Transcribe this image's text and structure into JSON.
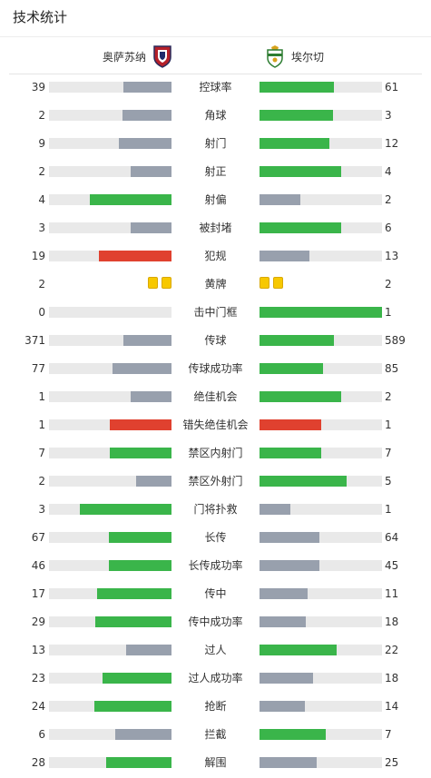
{
  "header": {
    "title": "技术统计"
  },
  "teams": {
    "home": "奥萨苏纳",
    "away": "埃尔切"
  },
  "colors": {
    "green": "#3ab54a",
    "grey": "#98a0ad",
    "red": "#e0412f",
    "track": "#e9e9e9",
    "yellow_card": "#f7c800"
  },
  "stats": [
    {
      "label": "控球率",
      "home": "39",
      "away": "61",
      "home_fill": 0.39,
      "away_fill": 0.61,
      "home_color": "grey",
      "away_color": "green"
    },
    {
      "label": "角球",
      "home": "2",
      "away": "3",
      "home_fill": 0.4,
      "away_fill": 0.6,
      "home_color": "grey",
      "away_color": "green"
    },
    {
      "label": "射门",
      "home": "9",
      "away": "12",
      "home_fill": 0.43,
      "away_fill": 0.57,
      "home_color": "grey",
      "away_color": "green"
    },
    {
      "label": "射正",
      "home": "2",
      "away": "4",
      "home_fill": 0.33,
      "away_fill": 0.67,
      "home_color": "grey",
      "away_color": "green"
    },
    {
      "label": "射偏",
      "home": "4",
      "away": "2",
      "home_fill": 0.67,
      "away_fill": 0.33,
      "home_color": "green",
      "away_color": "grey"
    },
    {
      "label": "被封堵",
      "home": "3",
      "away": "6",
      "home_fill": 0.33,
      "away_fill": 0.67,
      "home_color": "grey",
      "away_color": "green"
    },
    {
      "label": "犯规",
      "home": "19",
      "away": "13",
      "home_fill": 0.59,
      "away_fill": 0.41,
      "home_color": "red",
      "away_color": "grey"
    },
    {
      "label": "黄牌",
      "home": "2",
      "away": "2",
      "cards": true
    },
    {
      "label": "击中门框",
      "home": "0",
      "away": "1",
      "home_fill": 0,
      "away_fill": 1,
      "home_color": "grey",
      "away_color": "green"
    },
    {
      "label": "传球",
      "home": "371",
      "away": "589",
      "home_fill": 0.39,
      "away_fill": 0.61,
      "home_color": "grey",
      "away_color": "green"
    },
    {
      "label": "传球成功率",
      "home": "77",
      "away": "85",
      "home_fill": 0.48,
      "away_fill": 0.52,
      "home_color": "grey",
      "away_color": "green"
    },
    {
      "label": "绝佳机会",
      "home": "1",
      "away": "2",
      "home_fill": 0.33,
      "away_fill": 0.67,
      "home_color": "grey",
      "away_color": "green"
    },
    {
      "label": "错失绝佳机会",
      "home": "1",
      "away": "1",
      "home_fill": 0.5,
      "away_fill": 0.5,
      "home_color": "red",
      "away_color": "red"
    },
    {
      "label": "禁区内射门",
      "home": "7",
      "away": "7",
      "home_fill": 0.5,
      "away_fill": 0.5,
      "home_color": "green",
      "away_color": "green"
    },
    {
      "label": "禁区外射门",
      "home": "2",
      "away": "5",
      "home_fill": 0.29,
      "away_fill": 0.71,
      "home_color": "grey",
      "away_color": "green"
    },
    {
      "label": "门将扑救",
      "home": "3",
      "away": "1",
      "home_fill": 0.75,
      "away_fill": 0.25,
      "home_color": "green",
      "away_color": "grey"
    },
    {
      "label": "长传",
      "home": "67",
      "away": "64",
      "home_fill": 0.51,
      "away_fill": 0.49,
      "home_color": "green",
      "away_color": "grey"
    },
    {
      "label": "长传成功率",
      "home": "46",
      "away": "45",
      "home_fill": 0.51,
      "away_fill": 0.49,
      "home_color": "green",
      "away_color": "grey"
    },
    {
      "label": "传中",
      "home": "17",
      "away": "11",
      "home_fill": 0.61,
      "away_fill": 0.39,
      "home_color": "green",
      "away_color": "grey"
    },
    {
      "label": "传中成功率",
      "home": "29",
      "away": "18",
      "home_fill": 0.62,
      "away_fill": 0.38,
      "home_color": "green",
      "away_color": "grey"
    },
    {
      "label": "过人",
      "home": "13",
      "away": "22",
      "home_fill": 0.37,
      "away_fill": 0.63,
      "home_color": "grey",
      "away_color": "green"
    },
    {
      "label": "过人成功率",
      "home": "23",
      "away": "18",
      "home_fill": 0.56,
      "away_fill": 0.44,
      "home_color": "green",
      "away_color": "grey"
    },
    {
      "label": "抢断",
      "home": "24",
      "away": "14",
      "home_fill": 0.63,
      "away_fill": 0.37,
      "home_color": "green",
      "away_color": "grey"
    },
    {
      "label": "拦截",
      "home": "6",
      "away": "7",
      "home_fill": 0.46,
      "away_fill": 0.54,
      "home_color": "grey",
      "away_color": "green"
    },
    {
      "label": "解围",
      "home": "28",
      "away": "25",
      "home_fill": 0.53,
      "away_fill": 0.47,
      "home_color": "green",
      "away_color": "grey"
    }
  ]
}
